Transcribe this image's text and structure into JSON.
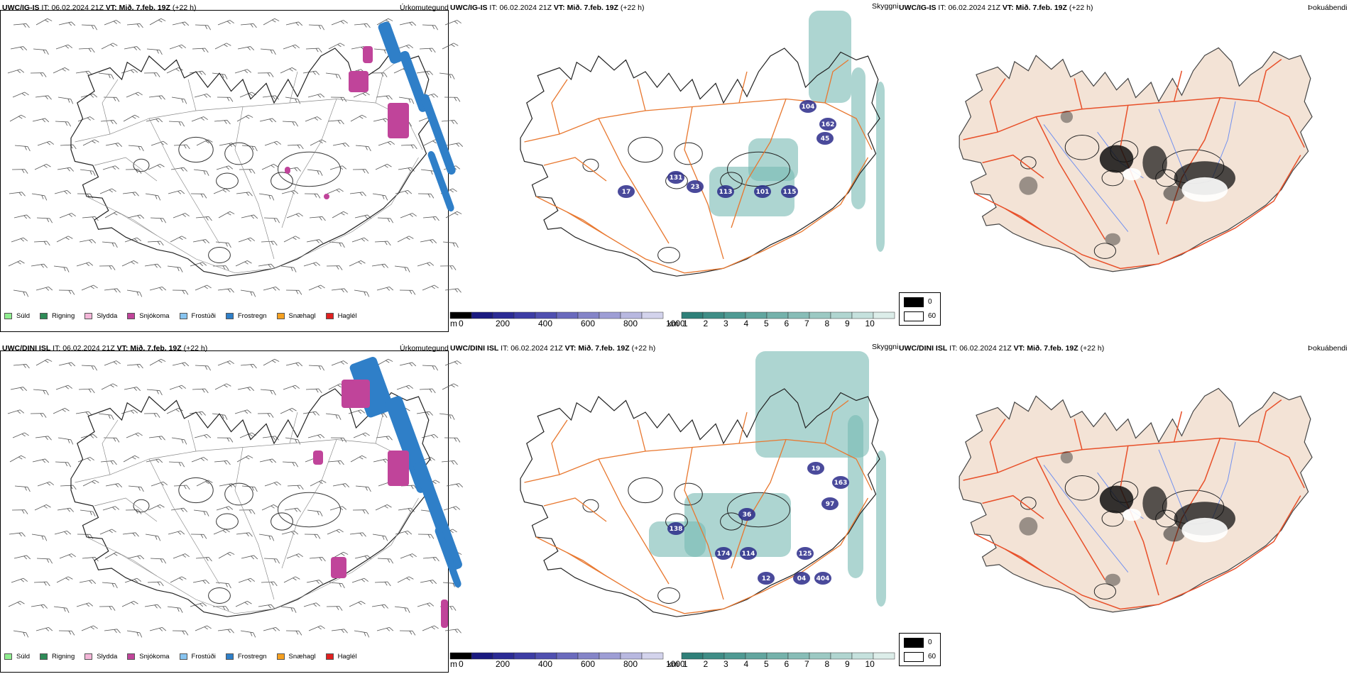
{
  "rows": [
    {
      "model": "UWC/IG-IS",
      "it_label": "IT:",
      "it_value": "06.02.2024 21Z",
      "vt_label": "VT:",
      "vt_value": "Mið. 7.feb. 19Z",
      "lead": "(+22 h)",
      "panels": {
        "left_title": "Úrkomutegund",
        "middle_title": "Skyggni",
        "right_title": "Þokuábendi"
      },
      "labels": [
        "131",
        "17",
        "113",
        "101",
        "115",
        "23",
        "104",
        "162",
        "45"
      ]
    },
    {
      "model": "UWC/DINI ISL",
      "it_label": "IT:",
      "it_value": "06.02.2024 21Z",
      "vt_label": "VT:",
      "vt_value": "Mið. 7.feb. 19Z",
      "lead": "(+22 h)",
      "panels": {
        "left_title": "Úrkomutegund",
        "middle_title": "Skyggni",
        "right_title": "Þokuábendi"
      },
      "labels": [
        "138",
        "174",
        "114",
        "125",
        "36",
        "19",
        "163",
        "12",
        "04",
        "404",
        "97"
      ]
    }
  ],
  "precip_legend": [
    {
      "label": "Súld",
      "color": "#90ee90"
    },
    {
      "label": "Rigning",
      "color": "#2e8b57"
    },
    {
      "label": "Slydda",
      "color": "#f4b6d8"
    },
    {
      "label": "Snjókoma",
      "color": "#c0449a"
    },
    {
      "label": "Frostúði",
      "color": "#87c4f0"
    },
    {
      "label": "Frostregn",
      "color": "#2f7fc8"
    },
    {
      "label": "Snæhagl",
      "color": "#f5a020"
    },
    {
      "label": "Haglél",
      "color": "#e02020"
    }
  ],
  "height_bar": {
    "unit": "m",
    "ticks": [
      "0",
      "200",
      "400",
      "600",
      "800",
      "1000"
    ]
  },
  "vis_bar": {
    "unit": "km",
    "ticks": [
      "1",
      "2",
      "3",
      "4",
      "5",
      "6",
      "7",
      "8",
      "9",
      "10"
    ]
  },
  "fog_legend": {
    "dark": "0",
    "light": "60"
  },
  "colors": {
    "land": "#f3e3d6",
    "roads": "#e87830",
    "rivers": "#6f8ff0",
    "visibility": "#4aa39a",
    "height_dark": "#2a2a8a"
  }
}
